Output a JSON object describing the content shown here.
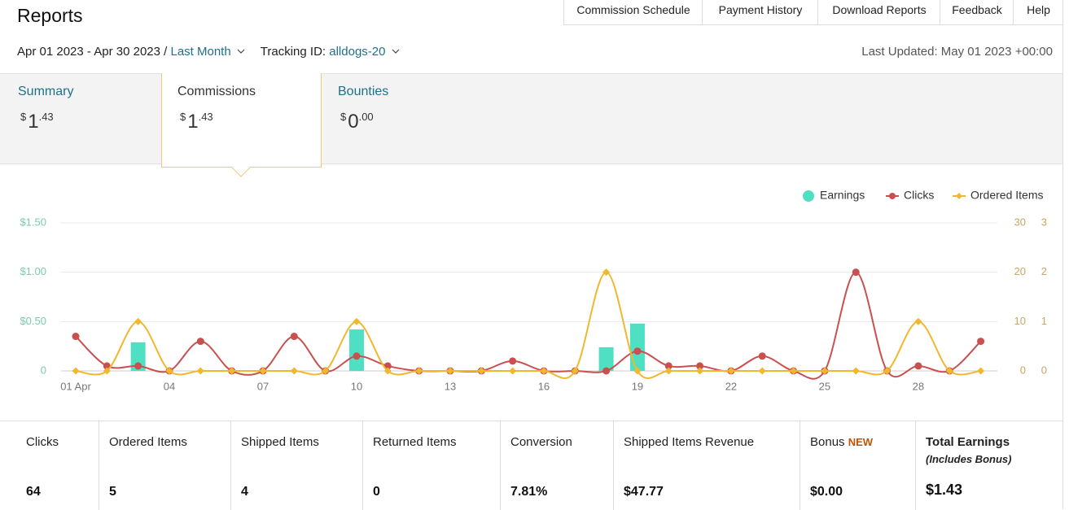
{
  "header": {
    "title": "Reports",
    "nav": [
      "Commission Schedule",
      "Payment History",
      "Download Reports",
      "Feedback",
      "Help"
    ]
  },
  "filters": {
    "date_range": "Apr 01 2023 - Apr 30 2023 /",
    "period": "Last Month",
    "tracking_label": "Tracking ID:",
    "tracking_id": "alldogs-20",
    "last_updated": "Last Updated: May 01 2023 +00:00"
  },
  "tabs": [
    {
      "label": "Summary",
      "currency": "$",
      "whole": "1",
      "fraction": ".43"
    },
    {
      "label": "Commissions",
      "currency": "$",
      "whole": "1",
      "fraction": ".43"
    },
    {
      "label": "Bounties",
      "currency": "$",
      "whole": "0",
      "fraction": ".00"
    }
  ],
  "chart_data": {
    "type": "combo",
    "categories": [
      "01 Apr",
      null,
      null,
      "04",
      null,
      null,
      "07",
      null,
      null,
      "10",
      null,
      null,
      "13",
      null,
      null,
      "16",
      null,
      null,
      "19",
      null,
      null,
      "22",
      null,
      null,
      "25",
      null,
      null,
      "28",
      null,
      null
    ],
    "series": [
      {
        "name": "Earnings",
        "type": "bar",
        "axis": "y",
        "color": "#4fe0c3",
        "values": [
          0,
          0,
          0.29,
          0,
          0,
          0,
          0,
          0,
          0,
          0.42,
          0,
          0,
          0,
          0,
          0,
          0,
          0,
          0.24,
          0.48,
          0,
          0,
          0,
          0,
          0,
          0,
          0,
          0,
          0,
          0,
          0
        ]
      },
      {
        "name": "Clicks",
        "type": "line",
        "axis": "y2",
        "color": "#c9504f",
        "values": [
          7,
          1,
          1,
          0,
          6,
          0,
          0,
          7,
          0,
          3,
          1,
          0,
          0,
          0,
          2,
          0,
          0,
          0,
          4,
          1,
          1,
          0,
          3,
          0,
          0,
          20,
          0,
          1,
          0,
          6
        ]
      },
      {
        "name": "Ordered Items",
        "type": "line",
        "axis": "y3",
        "color": "#f1b72e",
        "values": [
          0,
          0,
          1,
          0,
          0,
          0,
          0,
          0,
          0,
          1,
          0,
          0,
          0,
          0,
          0,
          0,
          0,
          2,
          0,
          0,
          0,
          0,
          0,
          0,
          0,
          0,
          0,
          1,
          0,
          0
        ]
      }
    ],
    "ylim": [
      0,
      1.5
    ],
    "yticks": [
      0,
      {
        "value": 0.5,
        "label": "$0.50"
      },
      {
        "value": 1,
        "label": "$1.00"
      },
      {
        "value": 1.5,
        "label": "$1.50"
      }
    ],
    "y2lim": [
      0,
      30
    ],
    "y2ticks": [
      0,
      10,
      20,
      30
    ],
    "y3lim": [
      0,
      3
    ],
    "y3ticks": [
      0,
      1,
      2,
      3
    ],
    "grid": true,
    "legend": "top-right"
  },
  "stats": [
    {
      "label": "Clicks",
      "value": "64"
    },
    {
      "label": "Ordered Items",
      "value": "5"
    },
    {
      "label": "Shipped Items",
      "value": "4"
    },
    {
      "label": "Returned Items",
      "value": "0"
    },
    {
      "label": "Conversion",
      "value": "7.81%"
    },
    {
      "label": "Shipped Items Revenue",
      "value": "$47.77"
    },
    {
      "label": "Bonus",
      "badge": "NEW",
      "value": "$0.00"
    },
    {
      "label": "Total Earnings",
      "note": "(Includes Bonus)",
      "value": "$1.43"
    }
  ]
}
